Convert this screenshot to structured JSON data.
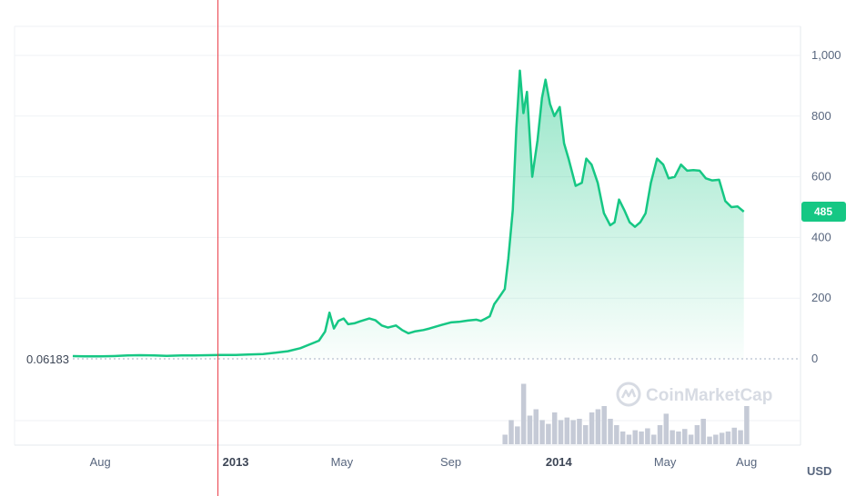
{
  "chart_data": {
    "type": "area",
    "y_unit": "USD",
    "ylim": [
      0,
      1000
    ],
    "yticks": [
      {
        "value": 0,
        "label": "0"
      },
      {
        "value": 200,
        "label": "200"
      },
      {
        "value": 400,
        "label": "400"
      },
      {
        "value": 600,
        "label": "600"
      },
      {
        "value": 800,
        "label": "800"
      },
      {
        "value": 1000,
        "label": "1,000"
      }
    ],
    "xticks": [
      {
        "date": "2012-08-01",
        "label": "Aug",
        "bold": false
      },
      {
        "date": "2013-01-01",
        "label": "2013",
        "bold": true
      },
      {
        "date": "2013-05-01",
        "label": "May",
        "bold": false
      },
      {
        "date": "2013-09-01",
        "label": "Sep",
        "bold": false
      },
      {
        "date": "2014-01-01",
        "label": "2014",
        "bold": true
      },
      {
        "date": "2014-05-01",
        "label": "May",
        "bold": false
      },
      {
        "date": "2014-08-01",
        "label": "Aug",
        "bold": false
      }
    ],
    "x_range": [
      "2012-07-01",
      "2014-10-01"
    ],
    "current_price": {
      "value": 485,
      "label": "485"
    },
    "min_marker": {
      "value": 0.06183,
      "label": "0.06183"
    },
    "crosshair_date": "2012-12-12",
    "grid": true,
    "line_color": "#16c784",
    "fill_color": "#16c784",
    "volume_color": "#c5cad6",
    "series": [
      {
        "points": [
          [
            "2012-07-01",
            9
          ],
          [
            "2012-07-15",
            8
          ],
          [
            "2012-08-01",
            8
          ],
          [
            "2012-08-15",
            9
          ],
          [
            "2012-09-01",
            11
          ],
          [
            "2012-09-15",
            12
          ],
          [
            "2012-10-01",
            11
          ],
          [
            "2012-10-15",
            10
          ],
          [
            "2012-11-01",
            11
          ],
          [
            "2012-11-15",
            11
          ],
          [
            "2012-12-01",
            12
          ],
          [
            "2012-12-15",
            13
          ],
          [
            "2013-01-01",
            13
          ],
          [
            "2013-01-15",
            14
          ],
          [
            "2013-02-01",
            16
          ],
          [
            "2013-02-15",
            20
          ],
          [
            "2013-03-01",
            25
          ],
          [
            "2013-03-15",
            35
          ],
          [
            "2013-04-01",
            55
          ],
          [
            "2013-04-05",
            60
          ],
          [
            "2013-04-12",
            90
          ],
          [
            "2013-04-17",
            152
          ],
          [
            "2013-04-22",
            100
          ],
          [
            "2013-04-27",
            125
          ],
          [
            "2013-05-03",
            133
          ],
          [
            "2013-05-08",
            114
          ],
          [
            "2013-05-15",
            117
          ],
          [
            "2013-05-22",
            124
          ],
          [
            "2013-06-01",
            133
          ],
          [
            "2013-06-08",
            127
          ],
          [
            "2013-06-15",
            110
          ],
          [
            "2013-06-22",
            103
          ],
          [
            "2013-07-01",
            110
          ],
          [
            "2013-07-08",
            95
          ],
          [
            "2013-07-15",
            84
          ],
          [
            "2013-07-22",
            90
          ],
          [
            "2013-08-01",
            95
          ],
          [
            "2013-08-08",
            100
          ],
          [
            "2013-08-15",
            106
          ],
          [
            "2013-08-22",
            112
          ],
          [
            "2013-09-01",
            120
          ],
          [
            "2013-09-10",
            122
          ],
          [
            "2013-09-20",
            126
          ],
          [
            "2013-09-30",
            129
          ],
          [
            "2013-10-05",
            125
          ],
          [
            "2013-10-10",
            132
          ],
          [
            "2013-10-15",
            140
          ],
          [
            "2013-10-20",
            180
          ],
          [
            "2013-10-25",
            200
          ],
          [
            "2013-11-01",
            230
          ],
          [
            "2013-11-05",
            330
          ],
          [
            "2013-11-10",
            490
          ],
          [
            "2013-11-14",
            760
          ],
          [
            "2013-11-18",
            950
          ],
          [
            "2013-11-22",
            810
          ],
          [
            "2013-11-26",
            880
          ],
          [
            "2013-12-02",
            600
          ],
          [
            "2013-12-08",
            720
          ],
          [
            "2013-12-13",
            860
          ],
          [
            "2013-12-17",
            920
          ],
          [
            "2013-12-22",
            840
          ],
          [
            "2013-12-27",
            800
          ],
          [
            "2014-01-02",
            830
          ],
          [
            "2014-01-07",
            710
          ],
          [
            "2014-01-12",
            660
          ],
          [
            "2014-01-20",
            570
          ],
          [
            "2014-01-27",
            580
          ],
          [
            "2014-02-01",
            660
          ],
          [
            "2014-02-07",
            640
          ],
          [
            "2014-02-14",
            580
          ],
          [
            "2014-02-21",
            480
          ],
          [
            "2014-02-28",
            440
          ],
          [
            "2014-03-05",
            450
          ],
          [
            "2014-03-10",
            525
          ],
          [
            "2014-03-16",
            490
          ],
          [
            "2014-03-22",
            450
          ],
          [
            "2014-03-28",
            435
          ],
          [
            "2014-04-03",
            450
          ],
          [
            "2014-04-09",
            480
          ],
          [
            "2014-04-15",
            580
          ],
          [
            "2014-04-22",
            660
          ],
          [
            "2014-04-29",
            640
          ],
          [
            "2014-05-05",
            595
          ],
          [
            "2014-05-12",
            600
          ],
          [
            "2014-05-19",
            640
          ],
          [
            "2014-05-26",
            620
          ],
          [
            "2014-06-02",
            622
          ],
          [
            "2014-06-09",
            620
          ],
          [
            "2014-06-16",
            595
          ],
          [
            "2014-06-23",
            588
          ],
          [
            "2014-07-01",
            590
          ],
          [
            "2014-07-08",
            520
          ],
          [
            "2014-07-15",
            500
          ],
          [
            "2014-07-22",
            502
          ],
          [
            "2014-07-29",
            485
          ]
        ]
      }
    ],
    "volume": [
      [
        "2013-11-01",
        0.15
      ],
      [
        "2013-11-08",
        0.38
      ],
      [
        "2013-11-15",
        0.28
      ],
      [
        "2013-11-22",
        0.95
      ],
      [
        "2013-11-29",
        0.45
      ],
      [
        "2013-12-06",
        0.55
      ],
      [
        "2013-12-13",
        0.38
      ],
      [
        "2013-12-20",
        0.32
      ],
      [
        "2013-12-27",
        0.5
      ],
      [
        "2014-01-03",
        0.38
      ],
      [
        "2014-01-10",
        0.42
      ],
      [
        "2014-01-17",
        0.38
      ],
      [
        "2014-01-24",
        0.4
      ],
      [
        "2014-01-31",
        0.3
      ],
      [
        "2014-02-07",
        0.5
      ],
      [
        "2014-02-14",
        0.55
      ],
      [
        "2014-02-21",
        0.6
      ],
      [
        "2014-02-28",
        0.4
      ],
      [
        "2014-03-07",
        0.3
      ],
      [
        "2014-03-14",
        0.2
      ],
      [
        "2014-03-21",
        0.15
      ],
      [
        "2014-03-28",
        0.22
      ],
      [
        "2014-04-04",
        0.2
      ],
      [
        "2014-04-11",
        0.25
      ],
      [
        "2014-04-18",
        0.15
      ],
      [
        "2014-04-25",
        0.3
      ],
      [
        "2014-05-02",
        0.48
      ],
      [
        "2014-05-09",
        0.22
      ],
      [
        "2014-05-16",
        0.2
      ],
      [
        "2014-05-23",
        0.24
      ],
      [
        "2014-05-30",
        0.15
      ],
      [
        "2014-06-06",
        0.3
      ],
      [
        "2014-06-13",
        0.4
      ],
      [
        "2014-06-20",
        0.12
      ],
      [
        "2014-06-27",
        0.15
      ],
      [
        "2014-07-04",
        0.18
      ],
      [
        "2014-07-11",
        0.2
      ],
      [
        "2014-07-18",
        0.26
      ],
      [
        "2014-07-25",
        0.22
      ],
      [
        "2014-08-01",
        0.6
      ]
    ]
  },
  "watermark": {
    "text": "CoinMarketCap"
  }
}
